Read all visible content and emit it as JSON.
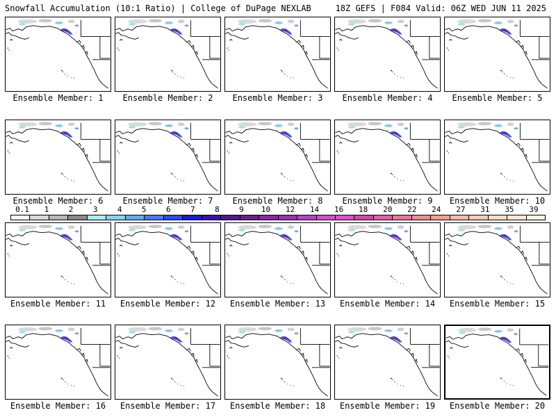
{
  "header": {
    "left": "Snowfall Accumulation (10:1 Ratio) | College of DuPage NEXLAB",
    "right": "18Z GEFS | F084 Valid: 06Z WED JUN 11 2025"
  },
  "colorbar": {
    "ticks": [
      "0.1",
      "1",
      "2",
      "3",
      "4",
      "5",
      "6",
      "7",
      "8",
      "9",
      "10",
      "12",
      "14",
      "16",
      "18",
      "20",
      "22",
      "24",
      "27",
      "31",
      "35",
      "39"
    ],
    "colors": [
      "#f4f4f4",
      "#d8d8d8",
      "#b8b8b8",
      "#8a8a8a",
      "#a8ecf8",
      "#8cd0f0",
      "#6aa8f0",
      "#4a7af0",
      "#2a4cf0",
      "#1a1ad8",
      "#3a10b0",
      "#501890",
      "#6a2090",
      "#8a28a8",
      "#a030b8",
      "#b840c8",
      "#d050d0",
      "#e050c8",
      "#d048a8",
      "#e060a8",
      "#e87898",
      "#f08c90",
      "#f0a090",
      "#f8b8a8",
      "#f8cab8",
      "#fcdcc8",
      "#fee6d4",
      "#fff0e0"
    ]
  },
  "panels": [
    {
      "label": "Ensemble Member: 1"
    },
    {
      "label": "Ensemble Member: 2"
    },
    {
      "label": "Ensemble Member: 3"
    },
    {
      "label": "Ensemble Member: 4"
    },
    {
      "label": "Ensemble Member: 5"
    },
    {
      "label": "Ensemble Member: 6"
    },
    {
      "label": "Ensemble Member: 7"
    },
    {
      "label": "Ensemble Member: 8"
    },
    {
      "label": "Ensemble Member: 9"
    },
    {
      "label": "Ensemble Member: 10"
    },
    {
      "label": "Ensemble Member: 11"
    },
    {
      "label": "Ensemble Member: 12"
    },
    {
      "label": "Ensemble Member: 13"
    },
    {
      "label": "Ensemble Member: 14"
    },
    {
      "label": "Ensemble Member: 15"
    },
    {
      "label": "Ensemble Member: 16"
    },
    {
      "label": "Ensemble Member: 17"
    },
    {
      "label": "Ensemble Member: 18"
    },
    {
      "label": "Ensemble Member: 19"
    },
    {
      "label": "Ensemble Member: 20"
    }
  ]
}
